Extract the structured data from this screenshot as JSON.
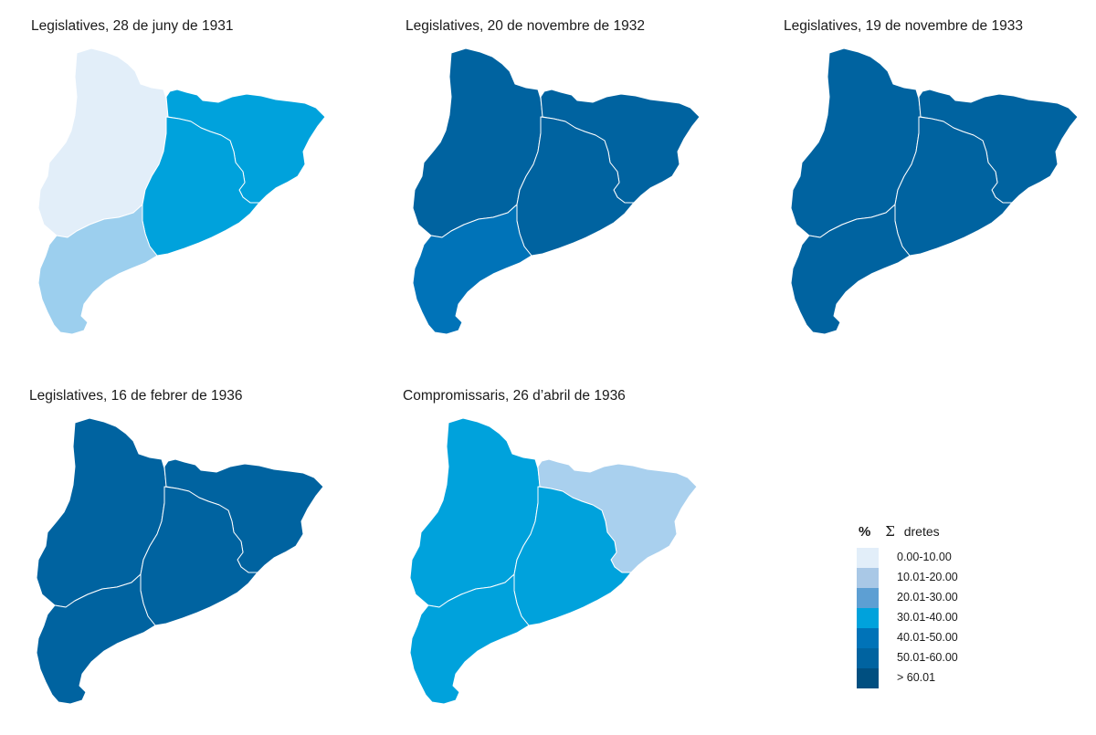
{
  "colors": {
    "c0": "#e2eef9",
    "c1": "#a9c8e6",
    "c2": "#5d9fd3",
    "c3": "#00a2dc",
    "c4": "#0073b8",
    "c5": "#0063a0",
    "c6": "#004f80",
    "panel1_low": "#e2eef9",
    "panel1_mid": "#9ccfee",
    "panel2_south": "#0073b8",
    "panel5_north": "#a9d0ee"
  },
  "maps": [
    {
      "title": "Legislatives, 28 de juny de 1931",
      "regions": {
        "lleida": "c0",
        "girona": "c3",
        "barcelona": "c3",
        "tarragona": "panel1_mid"
      }
    },
    {
      "title": "Legislatives, 20 de novembre de 1932",
      "regions": {
        "lleida": "c5",
        "girona": "c5",
        "barcelona": "c5",
        "tarragona": "panel2_south"
      }
    },
    {
      "title": "Legislatives, 19 de novembre de 1933",
      "regions": {
        "lleida": "c5",
        "girona": "c5",
        "barcelona": "c5",
        "tarragona": "c5"
      }
    },
    {
      "title": "Legislatives, 16 de febrer de 1936",
      "regions": {
        "lleida": "c5",
        "girona": "c5",
        "barcelona": "c5",
        "tarragona": "c5"
      }
    },
    {
      "title": "Compromissaris, 26 d’abril de 1936",
      "regions": {
        "lleida": "c3",
        "girona": "panel5_north",
        "barcelona": "c3",
        "tarragona": "c3"
      }
    }
  ],
  "legend": {
    "percent_symbol": "%",
    "sigma_symbol": "Σ",
    "label": "dretes",
    "items": [
      {
        "label": "0.00-10.00",
        "color": "c0"
      },
      {
        "label": "10.01-20.00",
        "color": "c1"
      },
      {
        "label": "20.01-30.00",
        "color": "c2"
      },
      {
        "label": "30.01-40.00",
        "color": "c3"
      },
      {
        "label": "40.01-50.00",
        "color": "c4"
      },
      {
        "label": "50.01-60.00",
        "color": "c5"
      },
      {
        "label": "> 60.01",
        "color": "c6"
      }
    ]
  }
}
